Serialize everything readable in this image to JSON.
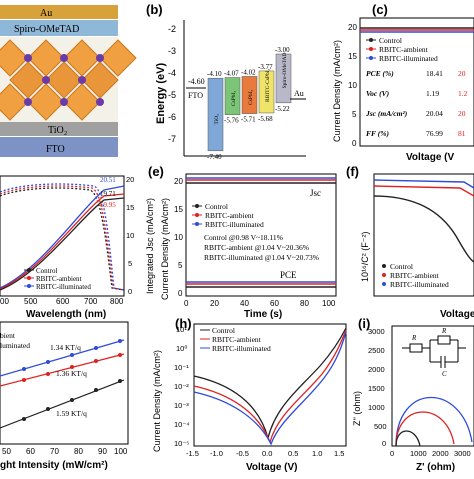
{
  "panel_labels": {
    "a": "",
    "b": "(b)",
    "c": "(c)",
    "d": "",
    "e": "(e)",
    "f": "(f)",
    "g": "",
    "h": "(h)",
    "i": "(i)"
  },
  "panel_a": {
    "layers": [
      "Au",
      "Spiro-OMeTAD",
      "TiO₂",
      "FTO"
    ]
  },
  "panel_b": {
    "ylabel": "Energy (eV)",
    "yticks": [
      "-2",
      "-3",
      "-4",
      "-5",
      "-6",
      "-7"
    ],
    "fto_label": "FTO",
    "fto_level": "-4.60",
    "au_label": "Au",
    "au_level": "-5.10",
    "materials": [
      {
        "name": "TiO₂",
        "cb": "-4.10",
        "vb": "-7.40",
        "color": "#7fa8d8"
      },
      {
        "name": "CsPbI₃",
        "cb": "-4.07",
        "vb": "-5.76",
        "color": "#7cc576"
      },
      {
        "name": "CsPbI₃",
        "cb": "-4.02",
        "vb": "-5.71",
        "color": "#e77a3c"
      },
      {
        "name": "RBITC-CsPbI₃",
        "cb": "-3.77",
        "vb": "-5.68",
        "color": "#f0e36a"
      },
      {
        "name": "Spiro-OMeTAD",
        "cb": "-3.00",
        "vb": "-5.22",
        "color": "#b8b8c8"
      }
    ]
  },
  "panel_c": {
    "ylabel": "Current Density (mA/cm²)",
    "xlabel": "Voltage (V",
    "yticks": [
      "20",
      "15",
      "10",
      "5",
      "0"
    ],
    "legend": [
      "Control",
      "RBITC-ambient",
      "RBITC-illuminated"
    ],
    "table": [
      {
        "param": "PCE (%)",
        "control": "18.41",
        "ambient": "20"
      },
      {
        "param": "Voc (V)",
        "control": "1.19",
        "ambient": "1.2"
      },
      {
        "param": "Jsc (mA/cm²)",
        "control": "20.04",
        "ambient": "20"
      },
      {
        "param": "FF (%)",
        "control": "76.99",
        "ambient": "81"
      }
    ]
  },
  "panel_d": {
    "xlabel": "Wavelength (nm)",
    "ylabel_right": "Integrated Jsc (mA/cm²)",
    "xticks": [
      "00",
      "500",
      "600",
      "700",
      "800"
    ],
    "yticks_right": [
      "20",
      "15",
      "10",
      "5",
      "0"
    ],
    "legend": [
      "Control",
      "RBITC-ambient",
      "RBITC-illuminated"
    ],
    "annotations": [
      "20.51",
      "19.71",
      "19.95"
    ]
  },
  "panel_e": {
    "ylabel": "Current Density (mA/cm²)",
    "xlabel": "Time (s)",
    "yticks": [
      "20",
      "15",
      "10",
      "5",
      "0"
    ],
    "xticks": [
      "0",
      "20",
      "40",
      "60",
      "80",
      "100"
    ],
    "jsc_label": "Jsc",
    "pce_label": "PCE",
    "legend": [
      "Control",
      "RBITC-ambient",
      "RBITC-illuminated"
    ],
    "notes": [
      "Control @0.98 V~18.11%",
      "RBITC-ambient @1.04 V~20.36%",
      "RBITC-illuminated @1.04 V~20.73%"
    ]
  },
  "panel_f": {
    "ylabel": "10¹⁶/C² (F⁻²)",
    "xlabel": "Voltage",
    "legend": [
      "Control",
      "RBITC-ambient",
      "RBITC-illuminated"
    ]
  },
  "panel_g": {
    "xlabel": "ght Intensity (mW/cm²)",
    "xticks": [
      "50",
      "60",
      "70",
      "80",
      "90",
      "100"
    ],
    "slopes": [
      "1.34 KT/q",
      "1.36 KT/q",
      "1.59 KT/q"
    ],
    "legend": [
      "bient",
      "luminated"
    ]
  },
  "panel_h": {
    "ylabel": "Current Density (mA/cm²)",
    "xlabel": "Voltage (V)",
    "xticks": [
      "-1.5",
      "-1.0",
      "-0.5",
      "0.0",
      "0.5",
      "1.0",
      "1.5"
    ],
    "yticks": [
      "10¹",
      "10⁰",
      "10⁻¹",
      "10⁻²",
      "10⁻³",
      "10⁻⁴",
      "10⁻⁵"
    ],
    "legend": [
      "Control",
      "RBITC-ambient",
      "RBITC-illuminated"
    ]
  },
  "panel_i": {
    "ylabel": "Z'' (ohm)",
    "xlabel": "Z' (ohm)",
    "yticks": [
      "3000",
      "2500",
      "2000",
      "1500",
      "1000",
      "500",
      "0"
    ],
    "xticks": [
      "0",
      "1000",
      "2000",
      "3000"
    ],
    "circuit": {
      "rs": "R",
      "rs_sub": "s",
      "rrec": "R",
      "rrec_sub": "rec",
      "c": "C",
      "c_sub": "μ"
    }
  },
  "colors": {
    "control": "#222222",
    "ambient": "#e02020",
    "illuminated": "#2f4bd8"
  }
}
